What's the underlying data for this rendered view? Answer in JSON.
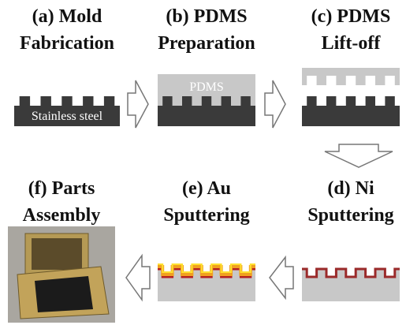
{
  "steps": [
    {
      "title": [
        "(a) Mold",
        "Fabrication"
      ],
      "label": "Stainless steel"
    },
    {
      "title": [
        "(b) PDMS",
        "Preparation"
      ],
      "label": "PDMS"
    },
    {
      "title": [
        "(c) PDMS",
        "Lift-off"
      ]
    },
    {
      "title": [
        "(d) Ni",
        "Sputtering"
      ]
    },
    {
      "title": [
        "(e) Au",
        "Sputtering"
      ]
    },
    {
      "title": [
        "(f) Parts",
        "Assembly"
      ]
    }
  ]
}
